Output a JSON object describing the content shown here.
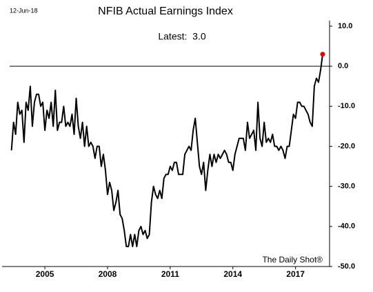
{
  "chart_data": {
    "type": "line",
    "title": "NFIB Actual Earnings Index",
    "date_label": "12-Jun-18",
    "annotation": "Latest:  3.0",
    "source": "The Daily Shot®",
    "x": [
      2003.4,
      2003.5,
      2003.6,
      2003.7,
      2003.8,
      2003.9,
      2004.0,
      2004.1,
      2004.2,
      2004.3,
      2004.4,
      2004.5,
      2004.6,
      2004.7,
      2004.8,
      2004.9,
      2005.0,
      2005.1,
      2005.2,
      2005.3,
      2005.4,
      2005.5,
      2005.6,
      2005.7,
      2005.8,
      2005.9,
      2006.0,
      2006.1,
      2006.2,
      2006.3,
      2006.4,
      2006.5,
      2006.6,
      2006.7,
      2006.8,
      2006.9,
      2007.0,
      2007.1,
      2007.2,
      2007.3,
      2007.4,
      2007.5,
      2007.6,
      2007.7,
      2007.8,
      2007.9,
      2008.0,
      2008.1,
      2008.2,
      2008.3,
      2008.4,
      2008.5,
      2008.6,
      2008.7,
      2008.8,
      2008.9,
      2009.0,
      2009.1,
      2009.2,
      2009.3,
      2009.4,
      2009.5,
      2009.6,
      2009.7,
      2009.8,
      2009.9,
      2010.0,
      2010.1,
      2010.2,
      2010.3,
      2010.4,
      2010.5,
      2010.6,
      2010.7,
      2010.8,
      2010.9,
      2011.0,
      2011.1,
      2011.2,
      2011.3,
      2011.4,
      2011.5,
      2011.6,
      2011.7,
      2011.8,
      2011.9,
      2012.0,
      2012.1,
      2012.2,
      2012.3,
      2012.4,
      2012.5,
      2012.6,
      2012.7,
      2012.8,
      2012.9,
      2013.0,
      2013.1,
      2013.2,
      2013.3,
      2013.4,
      2013.5,
      2013.6,
      2013.7,
      2013.8,
      2013.9,
      2014.0,
      2014.1,
      2014.2,
      2014.3,
      2014.4,
      2014.5,
      2014.6,
      2014.7,
      2014.8,
      2014.9,
      2015.0,
      2015.1,
      2015.2,
      2015.3,
      2015.4,
      2015.5,
      2015.6,
      2015.7,
      2015.8,
      2015.9,
      2016.0,
      2016.1,
      2016.2,
      2016.3,
      2016.4,
      2016.5,
      2016.6,
      2016.7,
      2016.8,
      2016.9,
      2017.0,
      2017.1,
      2017.2,
      2017.3,
      2017.4,
      2017.5,
      2017.6,
      2017.7,
      2017.8,
      2017.9,
      2018.0,
      2018.1,
      2018.2,
      2018.3
    ],
    "series": [
      {
        "color": "#000000",
        "marker_color": "#e60000",
        "values": [
          -21,
          -14,
          -17,
          -9,
          -12,
          -11,
          -19,
          -9,
          -11,
          -5,
          -15,
          -9,
          -7,
          -7,
          -10,
          -9,
          -16,
          -11,
          -13,
          -9,
          -15,
          -6,
          -16,
          -14,
          -14,
          -10,
          -15,
          -14,
          -15,
          -12,
          -17,
          -8,
          -15,
          -18,
          -14,
          -20,
          -15,
          -20,
          -19,
          -20,
          -23,
          -20,
          -20,
          -25,
          -22,
          -26,
          -32,
          -29,
          -31,
          -36,
          -34,
          -31,
          -37,
          -38,
          -41,
          -45,
          -45,
          -42,
          -45,
          -42,
          -45,
          -41,
          -40,
          -42,
          -41,
          -43,
          -42,
          -34,
          -30,
          -32,
          -33,
          -31,
          -33,
          -28,
          -27,
          -27,
          -25,
          -26,
          -24,
          -24,
          -27,
          -27,
          -27,
          -22,
          -21,
          -20,
          -21,
          -16,
          -13,
          -19,
          -25,
          -27,
          -24,
          -31,
          -26,
          -22,
          -25,
          -22,
          -24,
          -22,
          -23,
          -22,
          -21,
          -22,
          -24,
          -24,
          -26,
          -22,
          -20,
          -18,
          -18,
          -18,
          -21,
          -14,
          -18,
          -17,
          -16,
          -21,
          -9,
          -18,
          -20,
          -14,
          -19,
          -18,
          -19,
          -17,
          -20,
          -20,
          -21,
          -20,
          -21,
          -23,
          -20,
          -20,
          -16,
          -12,
          -13,
          -9,
          -9,
          -10,
          -10,
          -11,
          -12,
          -14,
          -15,
          -5,
          -3,
          -4,
          -1,
          3
        ]
      }
    ],
    "xlim": [
      2002.95,
      2018.63
    ],
    "xticks": [
      2005,
      2008,
      2011,
      2014,
      2017
    ],
    "ylim": [
      -50,
      10
    ],
    "yticks": [
      {
        "value": 10,
        "label": "10.0"
      },
      {
        "value": 0,
        "label": "0.0"
      },
      {
        "value": -10,
        "label": "-10.0"
      },
      {
        "value": -20,
        "label": "-20.0"
      },
      {
        "value": -30,
        "label": "-30.0"
      },
      {
        "value": -40,
        "label": "-40.0"
      },
      {
        "value": -50,
        "label": "-50.0"
      }
    ],
    "reference_line": 0
  }
}
